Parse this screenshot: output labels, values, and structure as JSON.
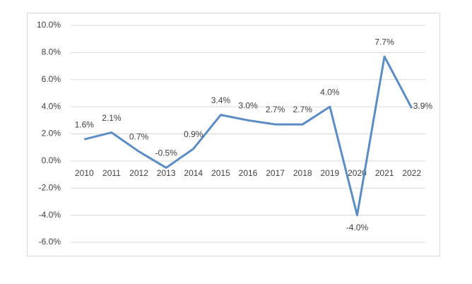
{
  "chart_data": {
    "type": "line",
    "categories": [
      "2010",
      "2011",
      "2012",
      "2013",
      "2014",
      "2015",
      "2016",
      "2017",
      "2018",
      "2019",
      "2020",
      "2021",
      "2022"
    ],
    "series": [
      {
        "color": "#5b8cc4",
        "values": [
          1.6,
          2.1,
          0.7,
          -0.5,
          0.9,
          3.4,
          3.0,
          2.7,
          2.7,
          4.0,
          -4.0,
          7.7,
          3.9
        ],
        "value_labels": [
          "1.6%",
          "2.1%",
          "0.7%",
          "-0.5%",
          "0.9%",
          "3.4%",
          "3.0%",
          "2.7%",
          "2.7%",
          "4.0%",
          "-4.0%",
          "7.7%",
          "3.9%"
        ]
      }
    ],
    "ylim": [
      -6,
      10
    ],
    "yticks": [
      {
        "value": -6,
        "label": "-6.0%"
      },
      {
        "value": -4,
        "label": "-4.0%"
      },
      {
        "value": -2,
        "label": "-2.0%"
      },
      {
        "value": 0,
        "label": "0.0%"
      },
      {
        "value": 2,
        "label": "2.0%"
      },
      {
        "value": 4,
        "label": "4.0%"
      },
      {
        "value": 6,
        "label": "6.0%"
      },
      {
        "value": 8,
        "label": "8.0%"
      },
      {
        "value": 10,
        "label": "10.0%"
      }
    ],
    "grid": true
  }
}
